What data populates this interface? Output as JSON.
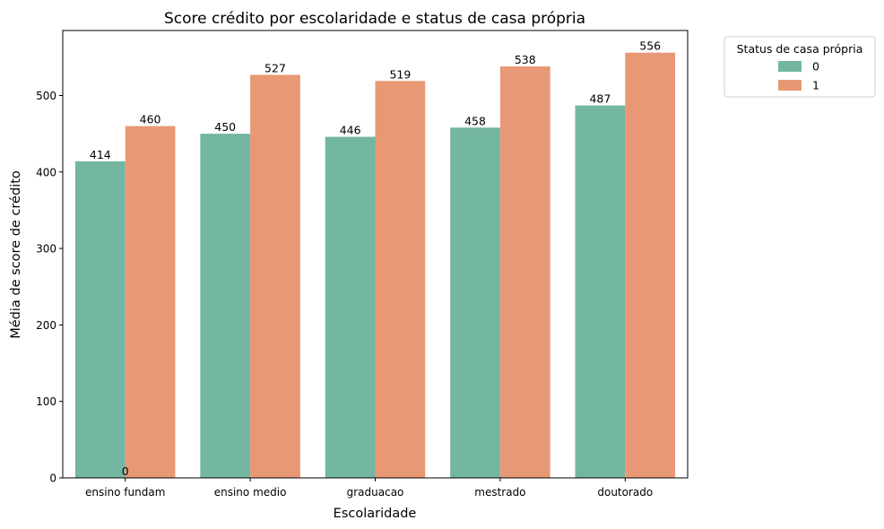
{
  "chart_data": {
    "type": "bar",
    "title": "Score crédito por escolaridade e status de casa própria",
    "xlabel": "Escolaridade",
    "ylabel": "Média de score de crédito",
    "categories": [
      "ensino fundam",
      "ensino medio",
      "graduacao",
      "mestrado",
      "doutorado"
    ],
    "series": [
      {
        "name": "0",
        "color": "#73b6a2",
        "values": [
          414,
          450,
          446,
          458,
          487
        ]
      },
      {
        "name": "1",
        "color": "#e99875",
        "values": [
          460,
          527,
          519,
          538,
          556
        ]
      }
    ],
    "ylim": [
      0,
      585
    ],
    "yticks": [
      0,
      100,
      200,
      300,
      400,
      500
    ],
    "extra_labels": [
      {
        "category": "ensino fundam",
        "text": "0"
      }
    ],
    "legend": {
      "title": "Status de casa própria",
      "placement": "outside-top-right"
    },
    "grid": false
  }
}
